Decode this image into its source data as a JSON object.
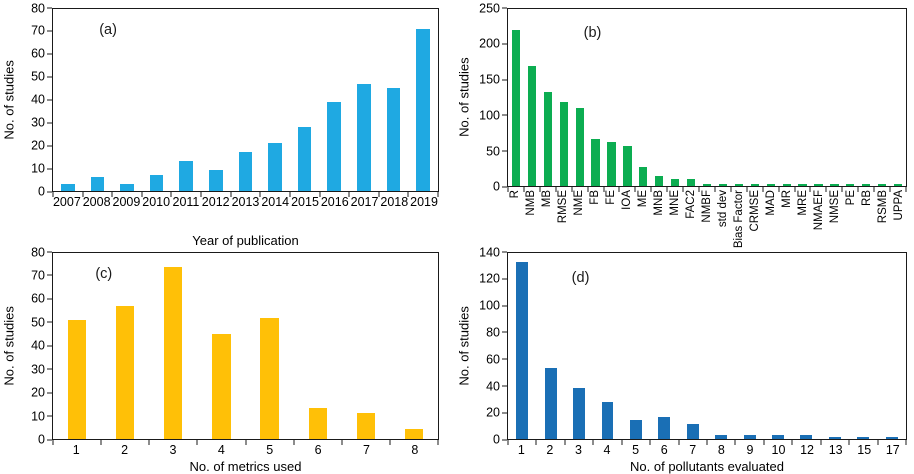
{
  "chart_data": [
    {
      "id": "a",
      "type": "bar",
      "panel_label": "(a)",
      "title": "",
      "xlabel": "Year of publication",
      "ylabel": "No. of studies",
      "categories": [
        "2007",
        "2008",
        "2009",
        "2010",
        "2011",
        "2012",
        "2013",
        "2014",
        "2015",
        "2016",
        "2017",
        "2018",
        "2019"
      ],
      "values": [
        3,
        6,
        3,
        7,
        13,
        9,
        17,
        21,
        28,
        39,
        47,
        45,
        71
      ],
      "ylim": [
        0,
        80
      ],
      "ytick_step": 10,
      "bar_color": "#1FA9E2",
      "rotated_xticks": false,
      "grid": false,
      "legend": "none"
    },
    {
      "id": "b",
      "type": "bar",
      "panel_label": "(b)",
      "title": "",
      "xlabel": "",
      "ylabel": "No. of studies",
      "categories": [
        "R",
        "NMB",
        "MB",
        "RMSE",
        "NME",
        "FB",
        "FE",
        "IOA",
        "ME",
        "MNB",
        "MNE",
        "FAC2",
        "NMBF",
        "std dev",
        "Bias Factor",
        "CRMSE",
        "MAD",
        "MR",
        "MRE",
        "NMAEF",
        "NMSE",
        "PE",
        "RB",
        "RSMB",
        "UPPA"
      ],
      "values": [
        220,
        170,
        133,
        118,
        110,
        66,
        62,
        56,
        27,
        14,
        9,
        9,
        2,
        2,
        2,
        2,
        2,
        2,
        2,
        2,
        2,
        2,
        2,
        2,
        2
      ],
      "ylim": [
        0,
        250
      ],
      "ytick_step": 50,
      "bar_color": "#0CAD51",
      "rotated_xticks": true,
      "grid": false,
      "legend": "none"
    },
    {
      "id": "c",
      "type": "bar",
      "panel_label": "(c)",
      "title": "",
      "xlabel": "No. of metrics used",
      "ylabel": "No. of studies",
      "categories": [
        "1",
        "2",
        "3",
        "4",
        "5",
        "6",
        "7",
        "8"
      ],
      "values": [
        51,
        57,
        74,
        45,
        52,
        13,
        11,
        4
      ],
      "ylim": [
        0,
        80
      ],
      "ytick_step": 10,
      "bar_color": "#FFC007",
      "rotated_xticks": false,
      "grid": false,
      "legend": "none"
    },
    {
      "id": "d",
      "type": "bar",
      "panel_label": "(d)",
      "title": "",
      "xlabel": "No. of pollutants evaluated",
      "ylabel": "No. of studies",
      "categories": [
        "1",
        "2",
        "3",
        "4",
        "5",
        "6",
        "7",
        "8",
        "9",
        "10",
        "12",
        "13",
        "15",
        "17"
      ],
      "values": [
        133,
        53,
        38,
        28,
        14,
        16,
        11,
        3,
        3,
        3,
        3,
        1,
        1,
        1
      ],
      "ylim": [
        0,
        140
      ],
      "ytick_step": 20,
      "bar_color": "#1A6FB5",
      "rotated_xticks": false,
      "grid": false,
      "legend": "none"
    }
  ]
}
